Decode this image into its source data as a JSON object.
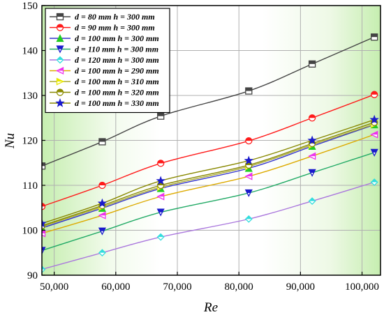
{
  "chart_data": {
    "type": "line",
    "xlabel": "Re",
    "ylabel": "Nu",
    "xlim": [
      48000,
      103000
    ],
    "ylim": [
      90,
      150
    ],
    "xticks": [
      50000,
      60000,
      70000,
      80000,
      90000,
      100000
    ],
    "xtick_labels": [
      "50,000",
      "60,000",
      "70,000",
      "80,000",
      "90,000",
      "100,000"
    ],
    "yticks": [
      90,
      100,
      110,
      120,
      130,
      140,
      150
    ],
    "ytick_labels": [
      "90",
      "100",
      "110",
      "120",
      "130",
      "140",
      "150"
    ],
    "grid": true,
    "legend_position": "top-left",
    "x": [
      48000,
      57800,
      67300,
      81600,
      91900,
      102000
    ],
    "series": [
      {
        "name": "d = 80 mm h = 300 mm",
        "color": "#444444",
        "marker": "square",
        "values": [
          114.3,
          119.7,
          125.4,
          131.0,
          137.0,
          143.0
        ]
      },
      {
        "name": "d = 90 mm h = 300 mm",
        "color": "#ff1a1a",
        "marker": "circle",
        "values": [
          105.3,
          110.0,
          114.9,
          119.9,
          125.0,
          130.2
        ]
      },
      {
        "name": "d = 100 mm h = 300 mm",
        "color": "#22cc22",
        "marker": "triangle-up",
        "values": [
          100.5,
          104.9,
          109.3,
          113.8,
          118.7,
          123.5
        ]
      },
      {
        "name": "d = 110 mm h = 300 mm",
        "color": "#1a1acc",
        "marker": "triangle-down",
        "values": [
          95.5,
          99.8,
          104.0,
          108.3,
          112.8,
          117.3
        ]
      },
      {
        "name": "d = 120 mm h = 300 mm",
        "color": "#33dddd",
        "marker": "diamond",
        "values": [
          91.3,
          95.0,
          98.5,
          102.5,
          106.5,
          110.7
        ]
      },
      {
        "name": "d = 100 mm h = 290 mm",
        "color": "#ee33ee",
        "marker": "triangle-left",
        "values": [
          99.3,
          103.3,
          107.5,
          112.0,
          116.5,
          121.3
        ]
      },
      {
        "name": "d = 100 mm h = 310 mm",
        "color": "#e8e800",
        "marker": "triangle-right",
        "values": [
          100.8,
          105.2,
          109.6,
          114.2,
          119.0,
          123.6
        ]
      },
      {
        "name": "d = 100 mm h = 320 mm",
        "color": "#8b8b00",
        "marker": "circle-half",
        "values": [
          101.0,
          105.5,
          110.0,
          114.5,
          119.3,
          124.0
        ]
      },
      {
        "name": "d = 100 mm h = 330 mm",
        "color": "#1a1acc",
        "marker": "star",
        "values": [
          101.5,
          106.0,
          111.0,
          115.5,
          120.0,
          124.6
        ]
      }
    ],
    "series_line_colors": [
      "#444444",
      "#ff1a1a",
      "#3333cc",
      "#22aa66",
      "#aa77dd",
      "#ddaa00",
      "#aaaa33",
      "#888800",
      "#888800"
    ]
  }
}
